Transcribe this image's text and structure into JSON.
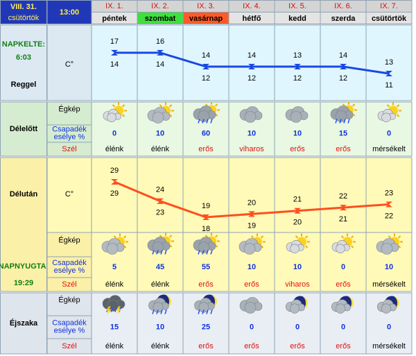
{
  "header": {
    "date": "VIII. 31.",
    "weekday": "csütörtök",
    "time": "13:00"
  },
  "days": [
    {
      "date": "IX. 1.",
      "name": "péntek",
      "color": "#e4e4e4"
    },
    {
      "date": "IX. 2.",
      "name": "szombat",
      "color": "#3ee03e"
    },
    {
      "date": "IX. 3.",
      "name": "vasárnap",
      "color": "#ff5a28"
    },
    {
      "date": "IX. 4.",
      "name": "hétfő",
      "color": "#e4e4e4"
    },
    {
      "date": "IX. 5.",
      "name": "kedd",
      "color": "#e4e4e4"
    },
    {
      "date": "IX. 6.",
      "name": "szerda",
      "color": "#e4e4e4"
    },
    {
      "date": "IX. 7.",
      "name": "csütörtök",
      "color": "#e4e4e4"
    }
  ],
  "chart_data": [
    {
      "type": "line",
      "ylabel": "C°",
      "series": [
        {
          "values": [
            17,
            16,
            14,
            14,
            13,
            14,
            13
          ]
        },
        {
          "color": "#1a48e0",
          "values": [
            14,
            14,
            12,
            12,
            12,
            12,
            11
          ]
        }
      ]
    },
    {
      "type": "line",
      "ylabel": "C°",
      "series": [
        {
          "values": [
            29,
            24,
            19,
            20,
            21,
            22,
            23
          ]
        },
        {
          "color": "#ff4e1e",
          "values": [
            29,
            23,
            18,
            19,
            20,
            21,
            22
          ]
        }
      ]
    }
  ],
  "morning": {
    "title": "Reggel",
    "sun_label": "NAPKELTE:",
    "sun_time": "6:03"
  },
  "forenoon": {
    "title": "Délelőtt",
    "sky_label": "Égkép",
    "precip_label": [
      "Csapadék",
      "esélye %"
    ],
    "wind_label": "Szél",
    "precip": [
      0,
      10,
      60,
      10,
      10,
      15,
      0
    ],
    "wind": [
      {
        "text": "élénk",
        "color": "#000000"
      },
      {
        "text": "élénk",
        "color": "#000000"
      },
      {
        "text": "erős",
        "color": "#e01010"
      },
      {
        "text": "viharos",
        "color": "#e01010"
      },
      {
        "text": "erős",
        "color": "#e01010"
      },
      {
        "text": "erős",
        "color": "#e01010"
      },
      {
        "text": "mérsékelt",
        "color": "#000000"
      }
    ]
  },
  "afternoon": {
    "title": "Délután",
    "sun_label": "NAPNYUGTA:",
    "sun_time": "19:29",
    "sky_label": "Égkép",
    "precip_label": [
      "Csapadék",
      "esélye %"
    ],
    "wind_label": "Szél",
    "precip": [
      5,
      45,
      55,
      10,
      10,
      0,
      10
    ],
    "wind": [
      {
        "text": "élénk",
        "color": "#000000"
      },
      {
        "text": "élénk",
        "color": "#000000"
      },
      {
        "text": "erős",
        "color": "#e01010"
      },
      {
        "text": "erős",
        "color": "#e01010"
      },
      {
        "text": "viharos",
        "color": "#e01010"
      },
      {
        "text": "erős",
        "color": "#e01010"
      },
      {
        "text": "mérsékelt",
        "color": "#000000"
      }
    ]
  },
  "night": {
    "title": "Éjszaka",
    "sky_label": "Égkép",
    "precip_label": [
      "Csapadék",
      "esélye %"
    ],
    "wind_label": "Szél",
    "precip": [
      15,
      10,
      25,
      0,
      0,
      0,
      0
    ],
    "wind": [
      {
        "text": "élénk",
        "color": "#000000"
      },
      {
        "text": "élénk",
        "color": "#000000"
      },
      {
        "text": "erős",
        "color": "#e01010"
      },
      {
        "text": "erős",
        "color": "#e01010"
      },
      {
        "text": "erős",
        "color": "#e01010"
      },
      {
        "text": "erős",
        "color": "#e01010"
      },
      {
        "text": "mérsékelt",
        "color": "#000000"
      }
    ]
  }
}
